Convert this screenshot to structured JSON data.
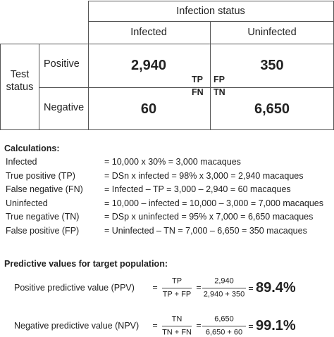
{
  "table": {
    "group_header": "Infection status",
    "columns": [
      "Infected",
      "Uninfected"
    ],
    "row_header": "Test status",
    "rows": [
      {
        "label": "Positive",
        "cells": [
          {
            "value": "2,940",
            "tag": "TP"
          },
          {
            "value": "350",
            "tag": "FP"
          }
        ]
      },
      {
        "label": "Negative",
        "cells": [
          {
            "value": "60",
            "tag": "FN"
          },
          {
            "value": "6,650",
            "tag": "TN"
          }
        ]
      }
    ]
  },
  "calculations": {
    "title": "Calculations:",
    "items": [
      {
        "label": "Infected",
        "formula": "= 10,000 x 30% = 3,000 macaques"
      },
      {
        "label": "True positive (TP)",
        "formula": "= DSn x infected = 98% x 3,000 = 2,940 macaques"
      },
      {
        "label": "False negative (FN)",
        "formula": "= Infected – TP = 3,000 – 2,940 = 60 macaques"
      },
      {
        "label": "Uninfected",
        "formula": "= 10,000 – infected = 10,000 – 3,000 = 7,000 macaques"
      },
      {
        "label": "True negative (TN)",
        "formula": "= DSp x uninfected = 95% x 7,000 = 6,650 macaques"
      },
      {
        "label": "False positive (FP)",
        "formula": "= Uninfected – TN = 7,000 – 6,650 = 350 macaques"
      }
    ]
  },
  "predictive": {
    "title": "Predictive values for target population:",
    "items": [
      {
        "label": "Positive predictive value (PPV)",
        "equals": "=",
        "symbolic": {
          "numerator": "TP",
          "denominator": "TP + FP"
        },
        "numeric": {
          "numerator": "2,940",
          "denominator": "2,940 + 350"
        },
        "result": "89.4%"
      },
      {
        "label": "Negative predictive value (NPV)",
        "equals": "=",
        "symbolic": {
          "numerator": "TN",
          "denominator": "TN + FN"
        },
        "numeric": {
          "numerator": "6,650",
          "denominator": "6,650 + 60"
        },
        "result": "99.1%"
      }
    ]
  }
}
